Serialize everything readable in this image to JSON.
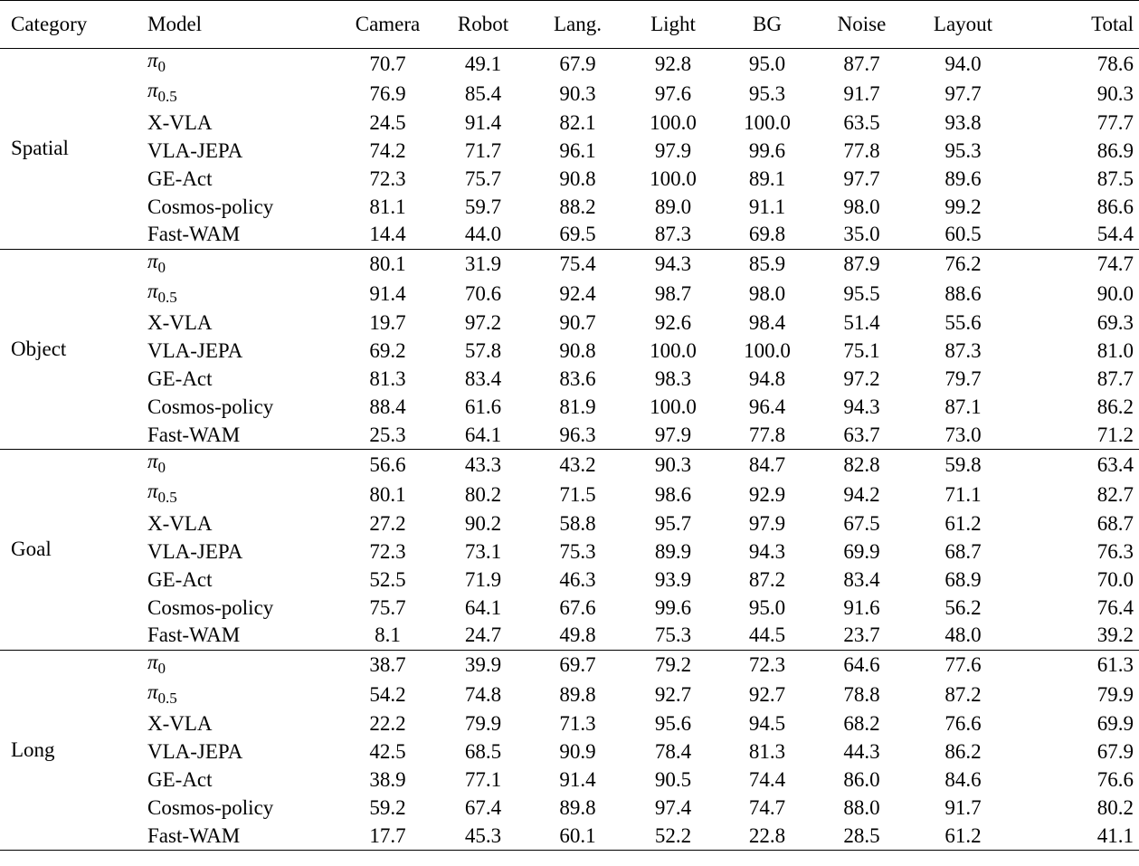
{
  "columns": [
    "Category",
    "Model",
    "Camera",
    "Robot",
    "Lang.",
    "Light",
    "BG",
    "Noise",
    "Layout",
    "Total"
  ],
  "groups": [
    {
      "category": "Spatial",
      "rows": [
        {
          "model": "π",
          "model_sub": "0",
          "values": [
            "70.7",
            "49.1",
            "67.9",
            "92.8",
            "95.0",
            "87.7",
            "94.0",
            "78.6"
          ]
        },
        {
          "model": "π",
          "model_sub": "0.5",
          "values": [
            "76.9",
            "85.4",
            "90.3",
            "97.6",
            "95.3",
            "91.7",
            "97.7",
            "90.3"
          ]
        },
        {
          "model": "X-VLA",
          "values": [
            "24.5",
            "91.4",
            "82.1",
            "100.0",
            "100.0",
            "63.5",
            "93.8",
            "77.7"
          ]
        },
        {
          "model": "VLA-JEPA",
          "values": [
            "74.2",
            "71.7",
            "96.1",
            "97.9",
            "99.6",
            "77.8",
            "95.3",
            "86.9"
          ]
        },
        {
          "model": "GE-Act",
          "values": [
            "72.3",
            "75.7",
            "90.8",
            "100.0",
            "89.1",
            "97.7",
            "89.6",
            "87.5"
          ]
        },
        {
          "model": "Cosmos-policy",
          "values": [
            "81.1",
            "59.7",
            "88.2",
            "89.0",
            "91.1",
            "98.0",
            "99.2",
            "86.6"
          ]
        },
        {
          "model": "Fast-WAM",
          "values": [
            "14.4",
            "44.0",
            "69.5",
            "87.3",
            "69.8",
            "35.0",
            "60.5",
            "54.4"
          ]
        }
      ]
    },
    {
      "category": "Object",
      "rows": [
        {
          "model": "π",
          "model_sub": "0",
          "values": [
            "80.1",
            "31.9",
            "75.4",
            "94.3",
            "85.9",
            "87.9",
            "76.2",
            "74.7"
          ]
        },
        {
          "model": "π",
          "model_sub": "0.5",
          "values": [
            "91.4",
            "70.6",
            "92.4",
            "98.7",
            "98.0",
            "95.5",
            "88.6",
            "90.0"
          ]
        },
        {
          "model": "X-VLA",
          "values": [
            "19.7",
            "97.2",
            "90.7",
            "92.6",
            "98.4",
            "51.4",
            "55.6",
            "69.3"
          ]
        },
        {
          "model": "VLA-JEPA",
          "values": [
            "69.2",
            "57.8",
            "90.8",
            "100.0",
            "100.0",
            "75.1",
            "87.3",
            "81.0"
          ]
        },
        {
          "model": "GE-Act",
          "values": [
            "81.3",
            "83.4",
            "83.6",
            "98.3",
            "94.8",
            "97.2",
            "79.7",
            "87.7"
          ]
        },
        {
          "model": "Cosmos-policy",
          "values": [
            "88.4",
            "61.6",
            "81.9",
            "100.0",
            "96.4",
            "94.3",
            "87.1",
            "86.2"
          ]
        },
        {
          "model": "Fast-WAM",
          "values": [
            "25.3",
            "64.1",
            "96.3",
            "97.9",
            "77.8",
            "63.7",
            "73.0",
            "71.2"
          ]
        }
      ]
    },
    {
      "category": "Goal",
      "rows": [
        {
          "model": "π",
          "model_sub": "0",
          "values": [
            "56.6",
            "43.3",
            "43.2",
            "90.3",
            "84.7",
            "82.8",
            "59.8",
            "63.4"
          ]
        },
        {
          "model": "π",
          "model_sub": "0.5",
          "values": [
            "80.1",
            "80.2",
            "71.5",
            "98.6",
            "92.9",
            "94.2",
            "71.1",
            "82.7"
          ]
        },
        {
          "model": "X-VLA",
          "values": [
            "27.2",
            "90.2",
            "58.8",
            "95.7",
            "97.9",
            "67.5",
            "61.2",
            "68.7"
          ]
        },
        {
          "model": "VLA-JEPA",
          "values": [
            "72.3",
            "73.1",
            "75.3",
            "89.9",
            "94.3",
            "69.9",
            "68.7",
            "76.3"
          ]
        },
        {
          "model": "GE-Act",
          "values": [
            "52.5",
            "71.9",
            "46.3",
            "93.9",
            "87.2",
            "83.4",
            "68.9",
            "70.0"
          ]
        },
        {
          "model": "Cosmos-policy",
          "values": [
            "75.7",
            "64.1",
            "67.6",
            "99.6",
            "95.0",
            "91.6",
            "56.2",
            "76.4"
          ]
        },
        {
          "model": "Fast-WAM",
          "values": [
            "8.1",
            "24.7",
            "49.8",
            "75.3",
            "44.5",
            "23.7",
            "48.0",
            "39.2"
          ]
        }
      ]
    },
    {
      "category": "Long",
      "rows": [
        {
          "model": "π",
          "model_sub": "0",
          "values": [
            "38.7",
            "39.9",
            "69.7",
            "79.2",
            "72.3",
            "64.6",
            "77.6",
            "61.3"
          ]
        },
        {
          "model": "π",
          "model_sub": "0.5",
          "values": [
            "54.2",
            "74.8",
            "89.8",
            "92.7",
            "92.7",
            "78.8",
            "87.2",
            "79.9"
          ]
        },
        {
          "model": "X-VLA",
          "values": [
            "22.2",
            "79.9",
            "71.3",
            "95.6",
            "94.5",
            "68.2",
            "76.6",
            "69.9"
          ]
        },
        {
          "model": "VLA-JEPA",
          "values": [
            "42.5",
            "68.5",
            "90.9",
            "78.4",
            "81.3",
            "44.3",
            "86.2",
            "67.9"
          ]
        },
        {
          "model": "GE-Act",
          "values": [
            "38.9",
            "77.1",
            "91.4",
            "90.5",
            "74.4",
            "86.0",
            "84.6",
            "76.6"
          ]
        },
        {
          "model": "Cosmos-policy",
          "values": [
            "59.2",
            "67.4",
            "89.8",
            "97.4",
            "74.7",
            "88.0",
            "91.7",
            "80.2"
          ]
        },
        {
          "model": "Fast-WAM",
          "values": [
            "17.7",
            "45.3",
            "60.1",
            "52.2",
            "22.8",
            "28.5",
            "61.2",
            "41.1"
          ]
        }
      ]
    }
  ]
}
